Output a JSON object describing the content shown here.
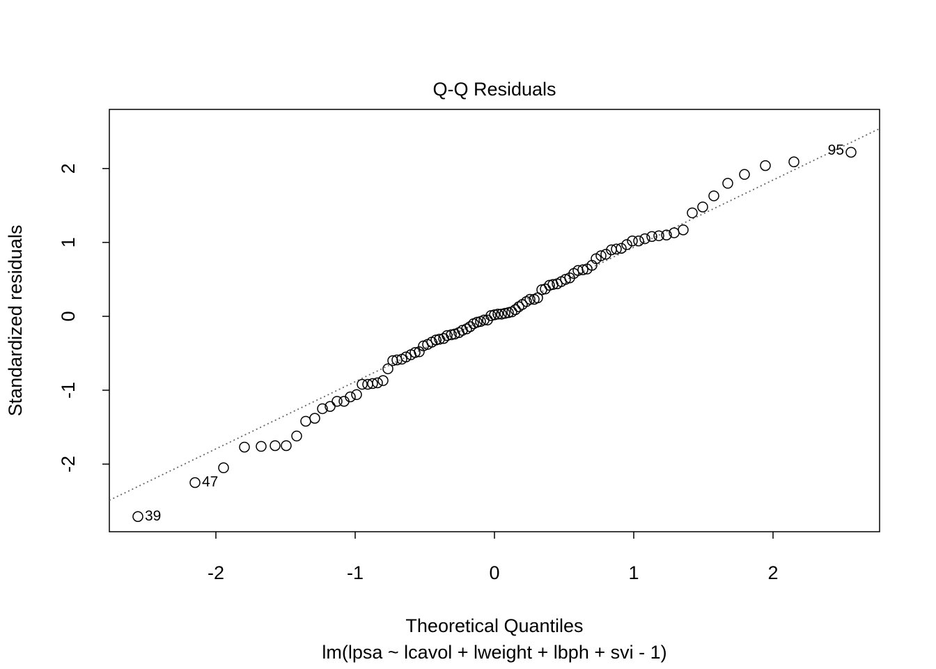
{
  "chart_data": {
    "type": "scatter",
    "title": "Q-Q Residuals",
    "x_label": "Theoretical Quantiles",
    "subtitle": "lm(lpsa ~ lcavol + lweight + lbph + svi - 1)",
    "y_label": "Standardized residuals",
    "xlim": [
      -2.765,
      2.765
    ],
    "ylim": [
      -2.915,
      2.8
    ],
    "xticks": [
      -2,
      -1,
      0,
      1,
      2
    ],
    "yticks": [
      -2,
      -1,
      0,
      1,
      2
    ],
    "color": "#000000",
    "reference_line": {
      "x": [
        -2.765,
        2.765
      ],
      "y": [
        -2.49,
        2.54
      ],
      "color": "#666666"
    },
    "x": [
      -2.56,
      -2.15,
      -1.945,
      -1.795,
      -1.675,
      -1.575,
      -1.495,
      -1.42,
      -1.355,
      -1.29,
      -1.235,
      -1.18,
      -1.13,
      -1.08,
      -1.035,
      -0.99,
      -0.95,
      -0.91,
      -0.875,
      -0.84,
      -0.8,
      -0.765,
      -0.73,
      -0.7,
      -0.665,
      -0.635,
      -0.6,
      -0.57,
      -0.54,
      -0.51,
      -0.48,
      -0.45,
      -0.42,
      -0.395,
      -0.365,
      -0.34,
      -0.31,
      -0.285,
      -0.255,
      -0.23,
      -0.2,
      -0.175,
      -0.15,
      -0.125,
      -0.1,
      -0.075,
      -0.05,
      -0.025,
      0,
      0.025,
      0.05,
      0.075,
      0.1,
      0.125,
      0.15,
      0.175,
      0.2,
      0.23,
      0.255,
      0.285,
      0.31,
      0.34,
      0.365,
      0.395,
      0.42,
      0.45,
      0.48,
      0.51,
      0.54,
      0.57,
      0.6,
      0.635,
      0.665,
      0.7,
      0.73,
      0.765,
      0.8,
      0.84,
      0.875,
      0.91,
      0.95,
      0.99,
      1.035,
      1.08,
      1.13,
      1.18,
      1.235,
      1.29,
      1.355,
      1.42,
      1.495,
      1.575,
      1.675,
      1.795,
      1.945,
      2.15,
      2.56
    ],
    "values": [
      -2.71,
      -2.25,
      -2.05,
      -1.77,
      -1.76,
      -1.75,
      -1.75,
      -1.62,
      -1.42,
      -1.38,
      -1.25,
      -1.22,
      -1.15,
      -1.15,
      -1.09,
      -1.06,
      -0.92,
      -0.92,
      -0.91,
      -0.9,
      -0.87,
      -0.71,
      -0.6,
      -0.59,
      -0.58,
      -0.55,
      -0.52,
      -0.49,
      -0.48,
      -0.4,
      -0.38,
      -0.35,
      -0.32,
      -0.31,
      -0.3,
      -0.26,
      -0.25,
      -0.24,
      -0.22,
      -0.19,
      -0.17,
      -0.14,
      -0.1,
      -0.08,
      -0.07,
      -0.05,
      -0.05,
      0.01,
      0.02,
      0.03,
      0.03,
      0.04,
      0.05,
      0.06,
      0.09,
      0.13,
      0.16,
      0.2,
      0.23,
      0.23,
      0.25,
      0.36,
      0.37,
      0.42,
      0.43,
      0.44,
      0.47,
      0.5,
      0.52,
      0.58,
      0.62,
      0.63,
      0.64,
      0.69,
      0.78,
      0.82,
      0.84,
      0.9,
      0.91,
      0.92,
      0.97,
      1.02,
      1.02,
      1.05,
      1.08,
      1.09,
      1.1,
      1.13,
      1.17,
      1.4,
      1.48,
      1.63,
      1.8,
      1.92,
      2.04,
      2.09,
      2.22
    ],
    "point_labels": [
      {
        "point": 0,
        "text": "39",
        "side": "right"
      },
      {
        "point": 1,
        "text": "47",
        "side": "right"
      },
      {
        "point": 96,
        "text": "95",
        "side": "left"
      }
    ]
  }
}
